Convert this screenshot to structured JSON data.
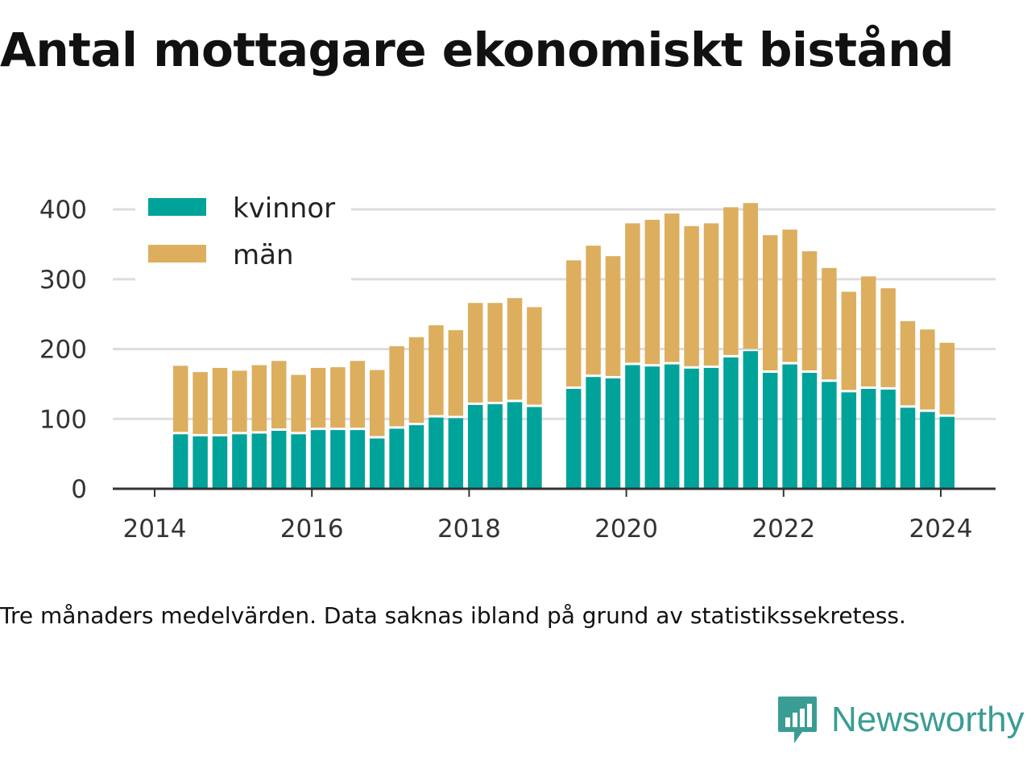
{
  "title": "Antal mottagare ekonomiskt bistånd",
  "note": "Tre månaders medelvärden. Data saknas ibland på grund av statistikssekretess.",
  "brand": {
    "name": "Newsworthy"
  },
  "colors": {
    "kvinnor": "#00a39a",
    "man": "#dcae5e",
    "axis": "#333333",
    "grid": "#dddddd"
  },
  "chart_data": {
    "type": "bar",
    "stacked": true,
    "y_ticks": [
      "0",
      "100",
      "200",
      "300",
      "400"
    ],
    "x_ticks": [
      "2014",
      "2016",
      "2018",
      "2020",
      "2022",
      "2024"
    ],
    "ylim": [
      0,
      420
    ],
    "legend_position": "top-left",
    "x": [
      2014.33,
      2014.58,
      2014.83,
      2015.08,
      2015.33,
      2015.58,
      2015.83,
      2016.08,
      2016.33,
      2016.58,
      2016.83,
      2017.08,
      2017.33,
      2017.58,
      2017.83,
      2018.08,
      2018.33,
      2018.58,
      2018.83,
      2019.33,
      2019.58,
      2019.83,
      2020.08,
      2020.33,
      2020.58,
      2020.83,
      2021.08,
      2021.33,
      2021.58,
      2021.83,
      2022.08,
      2022.33,
      2022.58,
      2022.83,
      2023.08,
      2023.33,
      2023.58,
      2023.83,
      2024.08
    ],
    "series": [
      {
        "name": "kvinnor",
        "values": [
          78,
          75,
          75,
          78,
          79,
          83,
          78,
          84,
          84,
          84,
          72,
          86,
          91,
          102,
          101,
          120,
          121,
          124,
          117,
          143,
          160,
          158,
          177,
          175,
          178,
          172,
          173,
          188,
          197,
          166,
          178,
          166,
          153,
          138,
          143,
          142,
          116,
          110,
          103
        ]
      },
      {
        "name": "män",
        "values": [
          98,
          92,
          98,
          91,
          98,
          100,
          85,
          89,
          90,
          99,
          98,
          118,
          126,
          132,
          126,
          146,
          145,
          149,
          143,
          184,
          188,
          175,
          203,
          210,
          216,
          204,
          207,
          215,
          212,
          197,
          193,
          174,
          163,
          144,
          161,
          145,
          124,
          118,
          106
        ]
      }
    ]
  }
}
